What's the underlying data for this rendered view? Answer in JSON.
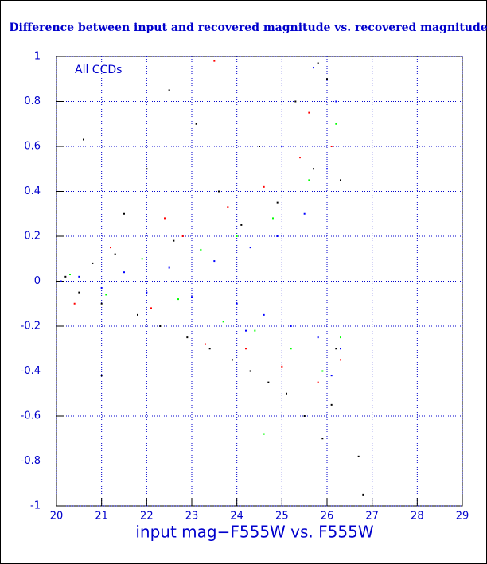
{
  "chart_data": {
    "type": "scatter",
    "title": "Difference between input and recovered magnitude vs. recovered magnitude",
    "x_label": "input mag−F555W vs. F555W",
    "annotation": "All CCDs",
    "xlim": [
      20,
      29
    ],
    "ylim": [
      -1,
      1
    ],
    "xticks": [
      20,
      21,
      22,
      23,
      24,
      25,
      26,
      27,
      28,
      29
    ],
    "yticks": [
      -1,
      -0.8,
      -0.6,
      -0.4,
      -0.2,
      0,
      0.2,
      0.4,
      0.6,
      0.8,
      1
    ],
    "grid": true,
    "series": [
      {
        "color": "#000000",
        "x": [
          20.2,
          20.5,
          20.8,
          21.0,
          21.3,
          21.5,
          21.8,
          22.0,
          22.3,
          22.6,
          22.9,
          23.1,
          23.4,
          23.6,
          23.9,
          24.1,
          24.3,
          24.5,
          24.7,
          24.9,
          25.1,
          25.3,
          25.5,
          25.7,
          25.9,
          26.0,
          26.2,
          26.3,
          26.7,
          26.8,
          22.5,
          20.6,
          21.0,
          25.8,
          26.1
        ],
        "y": [
          0.02,
          -0.05,
          0.08,
          -0.1,
          0.12,
          0.3,
          -0.15,
          0.5,
          -0.2,
          0.18,
          -0.25,
          0.7,
          -0.3,
          0.4,
          -0.35,
          0.25,
          -0.4,
          0.6,
          -0.45,
          0.35,
          -0.5,
          0.8,
          -0.6,
          0.5,
          -0.7,
          0.9,
          -0.3,
          0.45,
          -0.78,
          -0.95,
          0.85,
          0.63,
          -0.42,
          0.97,
          -0.55
        ]
      },
      {
        "color": "#ff0000",
        "x": [
          20.4,
          21.2,
          22.1,
          22.8,
          23.3,
          23.8,
          24.2,
          24.6,
          25.0,
          25.4,
          25.8,
          26.1,
          26.3,
          22.4,
          23.5,
          25.6
        ],
        "y": [
          -0.1,
          0.15,
          -0.12,
          0.2,
          -0.28,
          0.33,
          -0.3,
          0.42,
          -0.38,
          0.55,
          -0.45,
          0.6,
          -0.35,
          0.28,
          0.98,
          0.75
        ]
      },
      {
        "color": "#00ff00",
        "x": [
          20.3,
          21.1,
          21.9,
          22.7,
          23.2,
          23.7,
          24.0,
          24.4,
          24.8,
          25.2,
          25.6,
          25.9,
          26.2,
          26.3,
          24.6
        ],
        "y": [
          0.03,
          -0.06,
          0.1,
          -0.08,
          0.14,
          -0.18,
          0.2,
          -0.22,
          0.28,
          -0.3,
          0.45,
          -0.4,
          0.7,
          -0.25,
          -0.68
        ]
      },
      {
        "color": "#0000ff",
        "x": [
          20.1,
          20.5,
          21.0,
          21.5,
          22.0,
          22.5,
          23.0,
          23.5,
          24.0,
          24.3,
          24.6,
          24.9,
          25.2,
          25.5,
          25.8,
          26.0,
          26.2,
          26.3,
          25.0,
          24.2,
          25.7,
          26.1
        ],
        "y": [
          0.0,
          0.02,
          -0.03,
          0.04,
          -0.05,
          0.06,
          -0.07,
          0.09,
          -0.1,
          0.15,
          -0.15,
          0.2,
          -0.2,
          0.3,
          -0.25,
          0.5,
          0.8,
          -0.3,
          0.6,
          -0.22,
          0.95,
          -0.42
        ]
      }
    ]
  }
}
